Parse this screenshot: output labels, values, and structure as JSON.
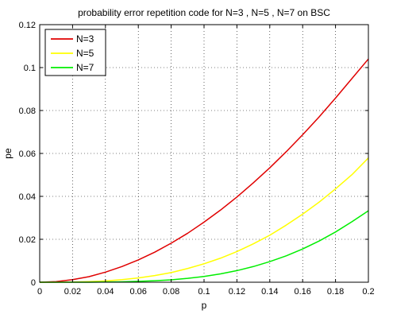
{
  "chart_data": {
    "type": "line",
    "title": "probability error repetition code for N=3 , N=5 , N=7 on BSC",
    "xlabel": "p",
    "ylabel": "pe",
    "xlim": [
      0,
      0.2
    ],
    "ylim": [
      0,
      0.12
    ],
    "xticks": [
      0,
      0.02,
      0.04,
      0.06,
      0.08,
      0.1,
      0.12,
      0.14,
      0.16,
      0.18,
      0.2
    ],
    "xtick_labels": [
      "0",
      "0.02",
      "0.04",
      "0.06",
      "0.08",
      "0.1",
      "0.12",
      "0.14",
      "0.16",
      "0.18",
      "0.2"
    ],
    "yticks": [
      0,
      0.02,
      0.04,
      0.06,
      0.08,
      0.1,
      0.12
    ],
    "ytick_labels": [
      "0",
      "0.02",
      "0.04",
      "0.06",
      "0.08",
      "0.1",
      "0.12"
    ],
    "grid": true,
    "grid_style": "dotted",
    "legend_position": "top-left",
    "x": [
      0,
      0.01,
      0.02,
      0.03,
      0.04,
      0.05,
      0.06,
      0.07,
      0.08,
      0.09,
      0.1,
      0.11,
      0.12,
      0.13,
      0.14,
      0.15,
      0.16,
      0.17,
      0.18,
      0.19,
      0.2
    ],
    "series": [
      {
        "name": "N=3",
        "color": "#e00000",
        "values": [
          0.0,
          0.0003,
          0.0012,
          0.0026,
          0.0047,
          0.0073,
          0.0104,
          0.014,
          0.0182,
          0.0228,
          0.028,
          0.0336,
          0.0397,
          0.0463,
          0.0533,
          0.0608,
          0.0687,
          0.077,
          0.0858,
          0.0949,
          0.104
        ]
      },
      {
        "name": "N=5",
        "color": "#ffff00",
        "values": [
          0.0,
          0.0,
          0.0001,
          0.0003,
          0.0006,
          0.0012,
          0.002,
          0.0031,
          0.0045,
          0.0064,
          0.0086,
          0.0112,
          0.0143,
          0.0179,
          0.0219,
          0.0266,
          0.0317,
          0.0373,
          0.0435,
          0.0501,
          0.0579
        ]
      },
      {
        "name": "N=7",
        "color": "#00ee00",
        "values": [
          0.0,
          0.0,
          0.0,
          0.0,
          0.0001,
          0.0002,
          0.0004,
          0.0007,
          0.0011,
          0.0018,
          0.0027,
          0.0039,
          0.0054,
          0.0073,
          0.0096,
          0.0123,
          0.0155,
          0.0192,
          0.0234,
          0.0282,
          0.0333
        ]
      }
    ]
  }
}
